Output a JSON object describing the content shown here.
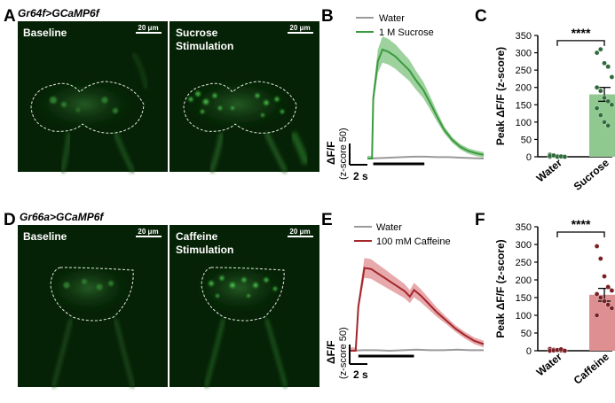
{
  "colors": {
    "green": "#3a9a3e",
    "green_fill": "#8cc98c",
    "green_bar": "#8fc98f",
    "green_dot": "#2e6a3a",
    "red": "#a3262b",
    "red_fill": "#e39a9c",
    "red_bar": "#dd8f92",
    "red_dot": "#7a1f24",
    "water": "#9a9a9a",
    "micro_bg": "#062206"
  },
  "rows": [
    {
      "panel_micro": "A",
      "genotype": "Gr64f>GCaMP6f",
      "left_image_label": "Baseline",
      "right_image_label_line1": "Sucrose",
      "right_image_label_line2": "Stimulation",
      "scalebar_left": "20 μm",
      "scalebar_right": "20 μm",
      "panel_trace": "B",
      "legend_water": "Water",
      "legend_stim": "1 M Sucrose",
      "trace_ylabel_main": "ΔF/F",
      "trace_ylabel_sub": "(z-score 50)",
      "trace_time_label": "2 s",
      "panel_bar": "C"
    },
    {
      "panel_micro": "D",
      "genotype": "Gr66a>GCaMP6f",
      "left_image_label": "Baseline",
      "right_image_label_line1": "Caffeine",
      "right_image_label_line2": "Stimulation",
      "scalebar_left": "20 μm",
      "scalebar_right": "20 μm",
      "panel_trace": "E",
      "legend_water": "Water",
      "legend_stim": "100 mM Caffeine",
      "trace_ylabel_main": "ΔF/F",
      "trace_ylabel_sub": "(z-score 50)",
      "trace_time_label": "2 s",
      "panel_bar": "F"
    }
  ],
  "chart_data": [
    {
      "type": "line",
      "panel": "B",
      "x_unit": "s",
      "series": [
        {
          "name": "Water",
          "x": [
            0,
            2,
            4,
            6,
            8,
            10,
            12,
            14,
            16,
            18,
            20
          ],
          "y": [
            0,
            1,
            2,
            3,
            4,
            4,
            3,
            3,
            2,
            1,
            0
          ]
        },
        {
          "name": "1 M Sucrose",
          "x": [
            0,
            0.8,
            1.0,
            1.8,
            2.6,
            3.6,
            4.8,
            6.0,
            7.2,
            8.4,
            9.6,
            10.8,
            12.0,
            13.2,
            14.6,
            16.0,
            17.4,
            18.8,
            20
          ],
          "y": [
            0,
            0,
            130,
            210,
            235,
            230,
            220,
            205,
            190,
            168,
            148,
            120,
            90,
            62,
            40,
            25,
            16,
            11,
            8
          ]
        }
      ],
      "stimulus_window_s": [
        1.0,
        9.8
      ]
    },
    {
      "type": "bar",
      "panel": "C",
      "categories": [
        "Water",
        "Sucrose"
      ],
      "values": [
        2,
        180
      ],
      "sem": [
        2,
        20
      ],
      "points": [
        [
          6,
          4,
          2,
          1,
          0,
          0,
          3,
          -1,
          1,
          0,
          2,
          4
        ],
        [
          300,
          310,
          270,
          260,
          230,
          200,
          190,
          170,
          160,
          150,
          140,
          120,
          100,
          90
        ]
      ],
      "ylabel": "Peak ΔF/F (z-score)",
      "ylim": [
        0,
        350
      ],
      "yticks": [
        0,
        50,
        100,
        150,
        200,
        250,
        300,
        350
      ],
      "significance": "****"
    },
    {
      "type": "line",
      "panel": "E",
      "x_unit": "s",
      "series": [
        {
          "name": "Water",
          "x": [
            0,
            2,
            4,
            6,
            8,
            10,
            12,
            14,
            16,
            18,
            20
          ],
          "y": [
            0,
            1,
            1,
            0,
            1,
            2,
            1,
            1,
            2,
            1,
            1
          ]
        },
        {
          "name": "100 mM Caffeine",
          "x": [
            0,
            0.9,
            1.3,
            2.2,
            3.2,
            4.2,
            5.2,
            6.2,
            7.2,
            8.2,
            9.0,
            9.6,
            10.6,
            11.8,
            13.0,
            14.4,
            15.8,
            17.2,
            18.6,
            20
          ],
          "y": [
            0,
            0,
            80,
            150,
            148,
            140,
            132,
            124,
            116,
            108,
            98,
            110,
            100,
            85,
            70,
            55,
            40,
            28,
            18,
            12
          ]
        }
      ],
      "stimulus_window_s": [
        1.3,
        9.6
      ]
    },
    {
      "type": "bar",
      "panel": "F",
      "categories": [
        "Water",
        "Caffeine"
      ],
      "values": [
        2,
        158
      ],
      "sem": [
        2,
        18
      ],
      "points": [
        [
          5,
          3,
          2,
          1,
          0,
          0,
          1,
          2,
          4,
          0
        ],
        [
          295,
          260,
          210,
          180,
          170,
          160,
          150,
          140,
          130,
          120,
          100
        ]
      ],
      "ylabel": "Peak ΔF/F (z-score)",
      "ylim": [
        0,
        350
      ],
      "yticks": [
        0,
        50,
        100,
        150,
        200,
        250,
        300,
        350
      ],
      "significance": "****"
    }
  ]
}
